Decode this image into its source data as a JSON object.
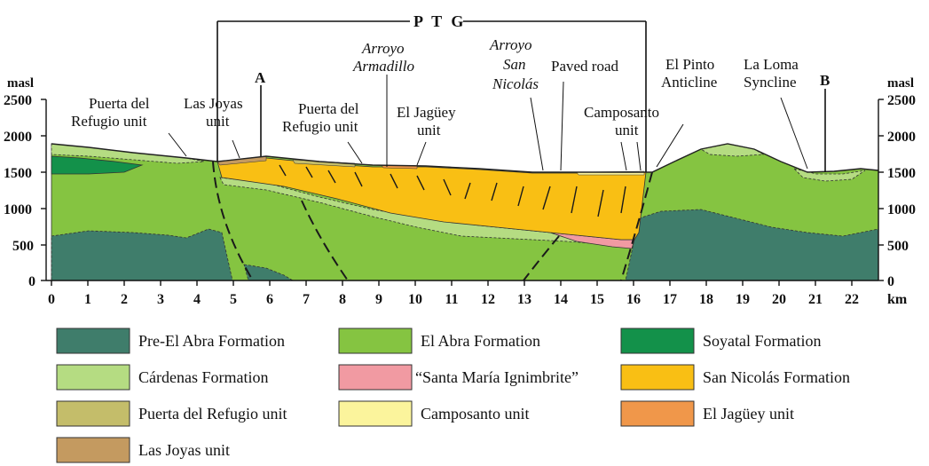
{
  "figure": {
    "ptg_label": "P T G",
    "point_a": "A",
    "point_b": "B",
    "left_axis_unit": "masl",
    "right_axis_unit": "masl",
    "km_unit": "km",
    "y_ticks": [
      "0",
      "500",
      "1000",
      "1500",
      "2000",
      "2500"
    ],
    "x_ticks": [
      "0",
      "1",
      "2",
      "3",
      "4",
      "5",
      "6",
      "7",
      "8",
      "9",
      "10",
      "11",
      "12",
      "13",
      "14",
      "15",
      "16",
      "17",
      "18",
      "19",
      "20",
      "21",
      "22"
    ],
    "labels": {
      "puerta_left_1": "Puerta del",
      "puerta_left_2": "Refugio unit",
      "las_joyas_1": "Las Joyas",
      "las_joyas_2": "unit",
      "arroyo_arm_1": "Arroyo",
      "arroyo_arm_2": "Armadillo",
      "puerta_mid_1": "Puerta del",
      "puerta_mid_2": "Refugio unit",
      "jaguey_1": "El Jagüey",
      "jaguey_2": "unit",
      "arroyo_san_1": "Arroyo",
      "arroyo_san_2": "San",
      "arroyo_san_3": "Nicolás",
      "paved_road": "Paved road",
      "camposanto_1": "Camposanto",
      "camposanto_2": "unit",
      "pinto_1": "El Pinto",
      "pinto_2": "Anticline",
      "loma_1": "La Loma",
      "loma_2": "Syncline"
    },
    "colors": {
      "pre_el_abra": "#3f7d6b",
      "el_abra": "#85c441",
      "soyatal": "#13914a",
      "cardenas": "#b5dc82",
      "santa_maria": "#f19aa2",
      "san_nicolas": "#f9bf14",
      "puerta": "#c4bd6a",
      "camposanto": "#fbf49c",
      "jaguey": "#f0974a",
      "las_joyas": "#c49a60"
    }
  },
  "legend": [
    {
      "label": "Pre-El Abra  Formation",
      "color": "#3f7d6b"
    },
    {
      "label": "El Abra Formation",
      "color": "#85c441"
    },
    {
      "label": "Soyatal Formation",
      "color": "#13914a"
    },
    {
      "label": "Cárdenas Formation",
      "color": "#b5dc82"
    },
    {
      "label": "“Santa María Ignimbrite”",
      "color": "#f19aa2"
    },
    {
      "label": "San Nicolás Formation",
      "color": "#f9bf14"
    },
    {
      "label": "Puerta del Refugio unit",
      "color": "#c4bd6a"
    },
    {
      "label": "Camposanto unit",
      "color": "#fbf49c"
    },
    {
      "label": "El Jagüey unit",
      "color": "#f0974a"
    },
    {
      "label": "Las Joyas unit",
      "color": "#c49a60"
    }
  ]
}
